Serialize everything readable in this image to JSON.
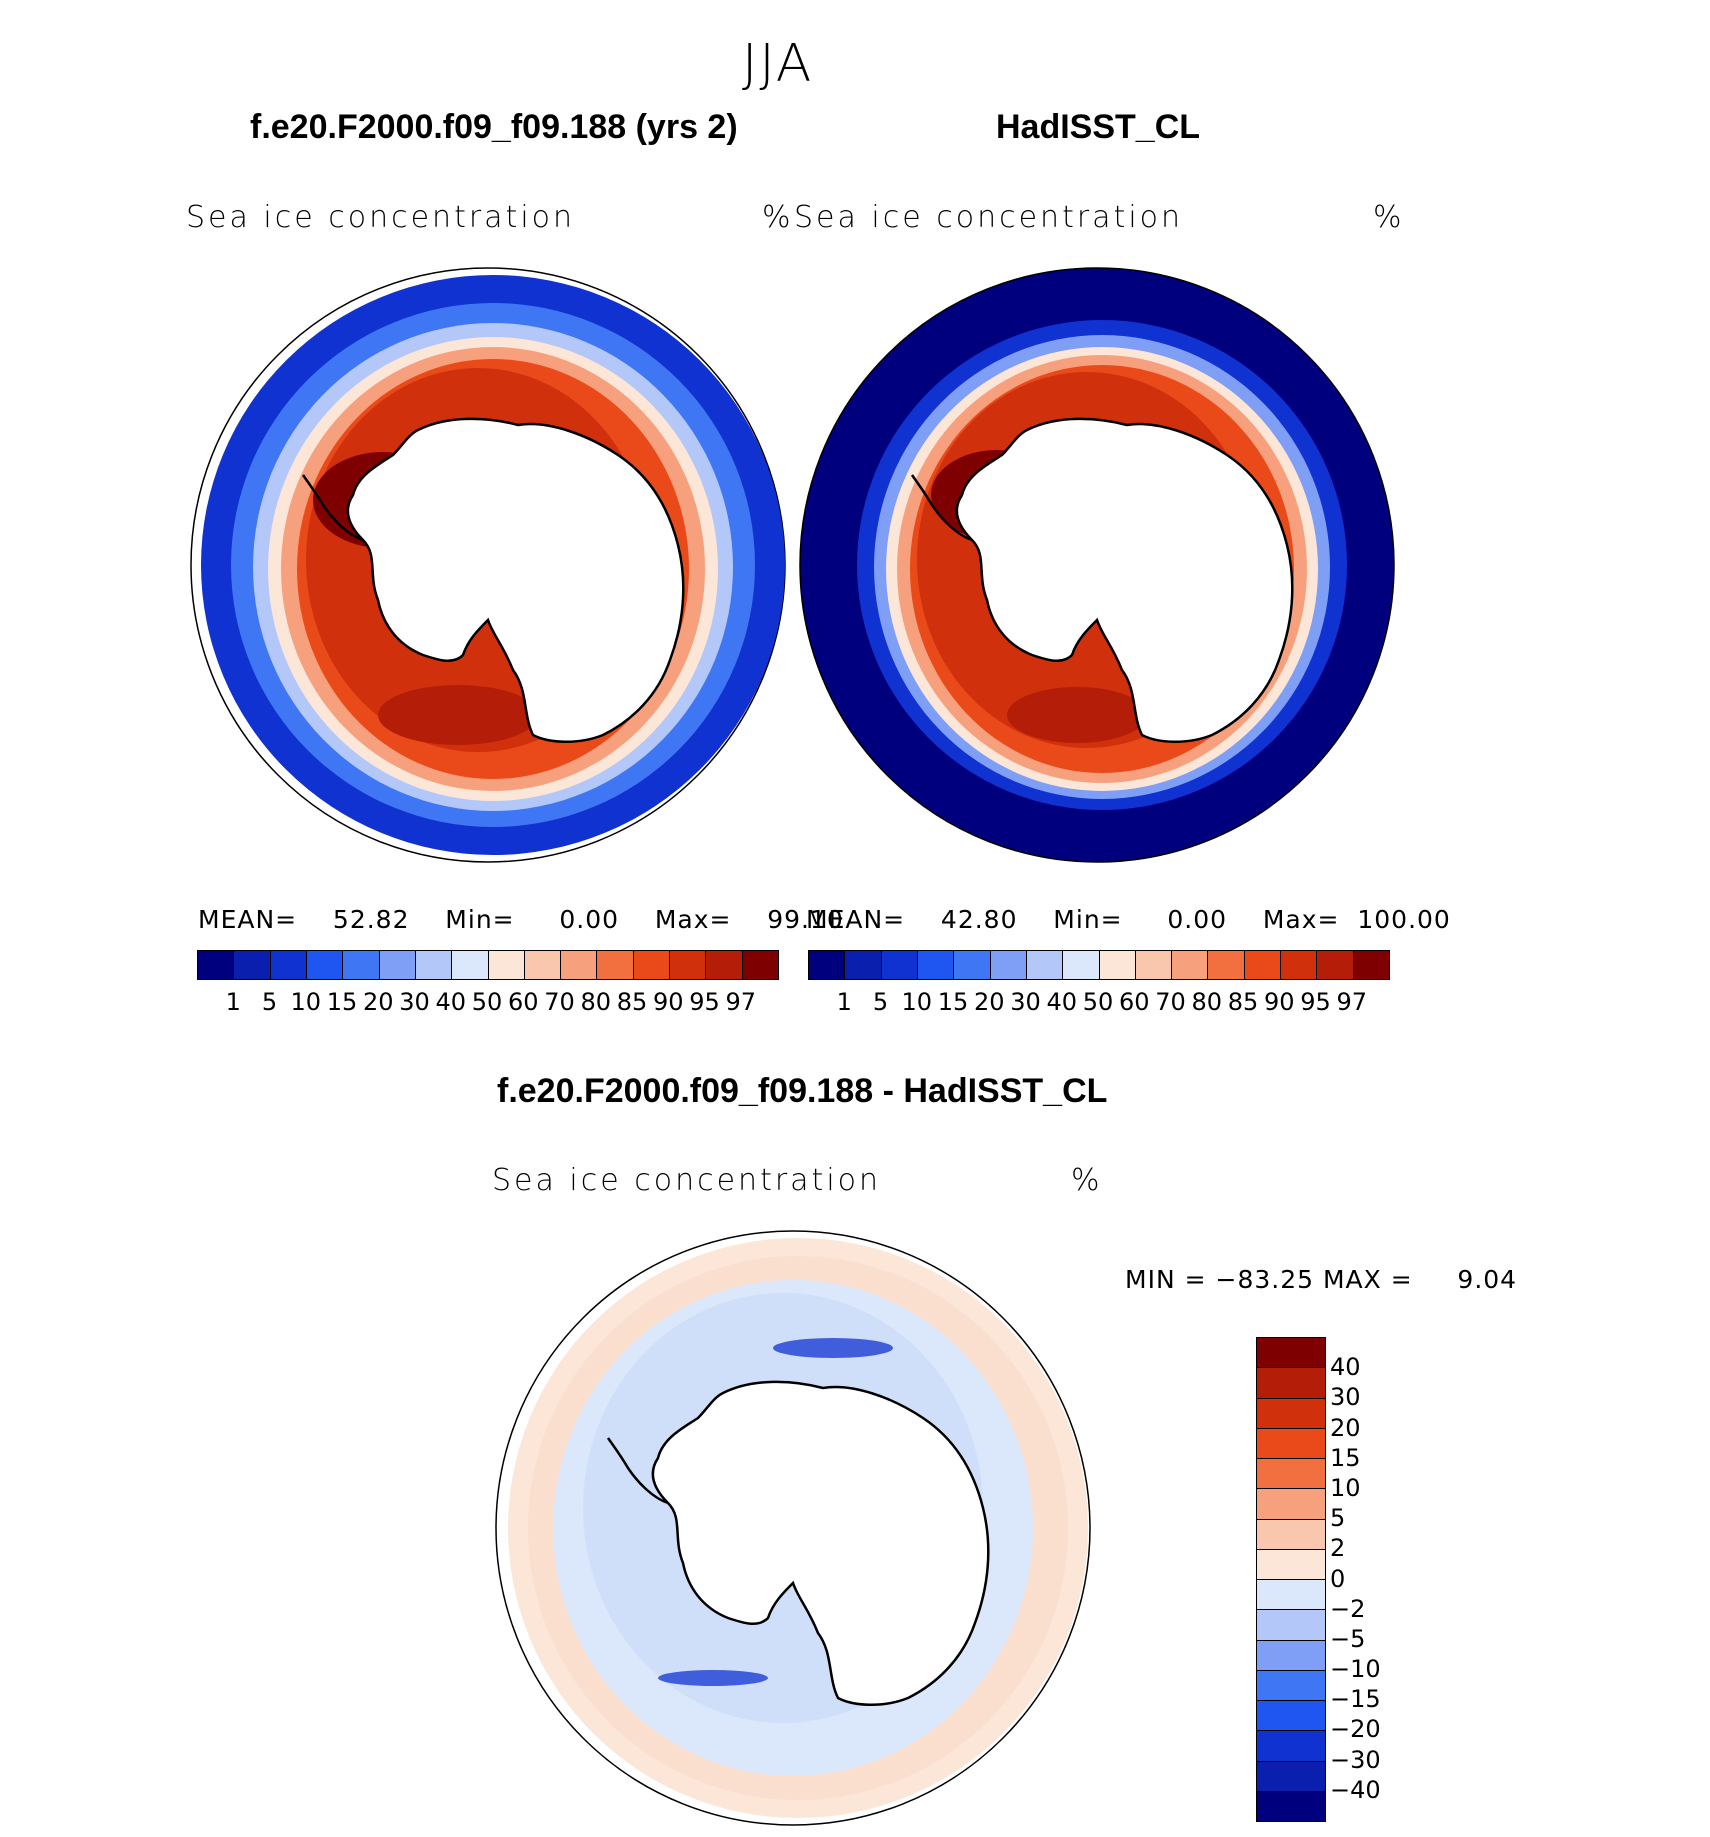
{
  "title": "JJA",
  "panels": [
    {
      "name": "model",
      "title": "f.e20.F2000.f09_f09.188 (yrs 2)",
      "variable": "Sea ice concentration",
      "units": "%",
      "stats_label_mean": "MEAN=",
      "stats_mean": "52.82",
      "stats_label_min": "Min=",
      "stats_min": "0.00",
      "stats_label_max": "Max=",
      "stats_max": "99.10"
    },
    {
      "name": "obs",
      "title": "HadISST_CL",
      "variable": "Sea ice concentration",
      "units": "%",
      "stats_label_mean": "MEAN=",
      "stats_mean": "42.80",
      "stats_label_min": "Min=",
      "stats_min": "0.00",
      "stats_label_max": "Max=",
      "stats_max": "100.00"
    }
  ],
  "colorbar_top": {
    "levels": [
      "1",
      "5",
      "10",
      "15",
      "20",
      "30",
      "40",
      "50",
      "60",
      "70",
      "80",
      "85",
      "90",
      "95",
      "97"
    ],
    "colors": [
      "#00007f",
      "#0a1fae",
      "#1032d0",
      "#1f55f0",
      "#3f76f4",
      "#7f9ef6",
      "#b3c8f9",
      "#dbe8fb",
      "#fbe6d8",
      "#f9c7ad",
      "#f7a07e",
      "#f2703f",
      "#ea4a1a",
      "#d1300c",
      "#b41d08",
      "#7f0000"
    ]
  },
  "difference": {
    "title": "f.e20.F2000.f09_f09.188 - HadISST_CL",
    "variable": "Sea ice concentration",
    "units": "%",
    "minmax_label": "MIN = ",
    "min": "−83.25",
    "max_label": "MAX = ",
    "max": "9.04",
    "colorbar": {
      "levels": [
        "40",
        "30",
        "20",
        "15",
        "10",
        "5",
        "2",
        "0",
        "−2",
        "−5",
        "−10",
        "−15",
        "−20",
        "−30",
        "−40"
      ],
      "colors": [
        "#7f0000",
        "#b41d08",
        "#d1300c",
        "#ea4a1a",
        "#f2703f",
        "#f7a07e",
        "#f9c7ad",
        "#fbe6d8",
        "#dbe8fb",
        "#b3c8f9",
        "#7f9ef6",
        "#3f76f4",
        "#1f55f0",
        "#1032d0",
        "#0a1fae",
        "#00007f"
      ]
    }
  },
  "colors": {
    "land": "#ffffff",
    "coast": "#000000",
    "open_ocean_obs": "#00007f"
  }
}
